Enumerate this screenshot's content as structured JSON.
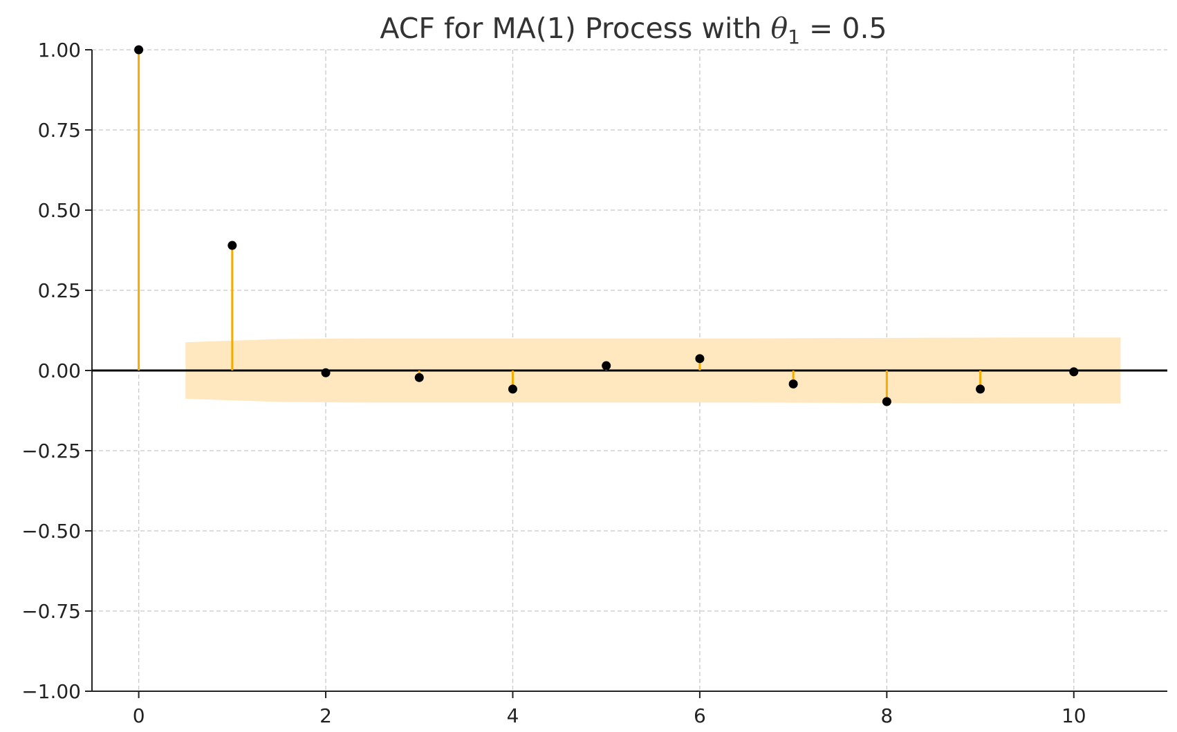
{
  "chart_data": {
    "type": "stem",
    "title_prefix": "ACF for MA(1) Process with ",
    "title_math": "θ",
    "title_subscript": "1",
    "title_suffix": " = 0.5",
    "xlabel": "",
    "ylabel": "",
    "xlim": [
      -0.5,
      11
    ],
    "ylim": [
      -1.0,
      1.0
    ],
    "x_ticks": [
      0,
      2,
      4,
      6,
      8,
      10
    ],
    "x_tick_labels": [
      "0",
      "2",
      "4",
      "6",
      "8",
      "10"
    ],
    "y_ticks": [
      1.0,
      0.75,
      0.5,
      0.25,
      0.0,
      -0.25,
      -0.5,
      -0.75,
      -1.0
    ],
    "y_tick_labels": [
      "1.00",
      "0.75",
      "0.50",
      "0.25",
      "0.00",
      "−0.25",
      "−0.50",
      "−0.75",
      "−1.00"
    ],
    "grid": true,
    "lags": [
      0,
      1,
      2,
      3,
      4,
      5,
      6,
      7,
      8,
      9,
      10
    ],
    "acf": [
      1.0,
      0.39,
      -0.007,
      -0.022,
      -0.058,
      0.015,
      0.037,
      -0.042,
      -0.097,
      -0.058,
      -0.004
    ],
    "confidence_band": {
      "x": [
        0.5,
        1.5,
        2.5,
        3.5,
        4.5,
        5.5,
        6.5,
        7.5,
        8.5,
        9.5,
        10.5
      ],
      "upper": [
        0.088,
        0.098,
        0.1,
        0.1,
        0.1,
        0.1,
        0.1,
        0.101,
        0.102,
        0.103,
        0.103
      ],
      "lower": [
        -0.088,
        -0.098,
        -0.1,
        -0.1,
        -0.1,
        -0.1,
        -0.1,
        -0.101,
        -0.102,
        -0.103,
        -0.103
      ]
    },
    "colors": {
      "stem": "#f5ab00",
      "marker": "#000000",
      "band": "#ffe8bf",
      "zero_line": "#000000"
    }
  }
}
